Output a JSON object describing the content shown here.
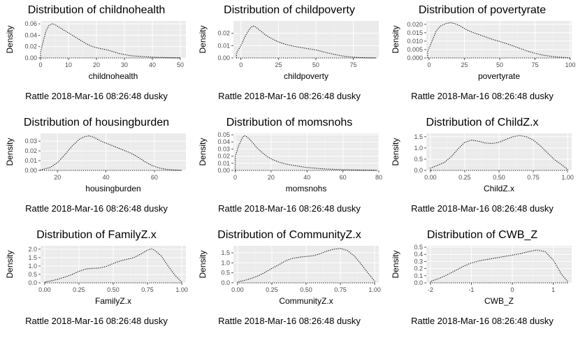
{
  "caption": "Rattle 2018-Mar-16 08:26:48 dusky",
  "chart_data": [
    {
      "type": "area",
      "title": "Distribution of childnohealth",
      "xlabel": "childnohealth",
      "ylabel": "Density",
      "xlim": [
        0,
        52
      ],
      "ylim": [
        0,
        0.065
      ],
      "xticks": [
        0,
        10,
        20,
        30,
        40,
        50
      ],
      "yticks": [
        0,
        0.02,
        0.04,
        0.06
      ],
      "ytick_labels": [
        "0.00",
        "0.02",
        "0.04",
        "0.06"
      ],
      "x": [
        0,
        1,
        2,
        3,
        4,
        5,
        6,
        8,
        10,
        12,
        14,
        16,
        18,
        20,
        22,
        24,
        26,
        28,
        30,
        32,
        35,
        38,
        41,
        44,
        47,
        50
      ],
      "y": [
        0.01,
        0.03,
        0.048,
        0.057,
        0.06,
        0.059,
        0.056,
        0.05,
        0.044,
        0.038,
        0.032,
        0.026,
        0.021,
        0.018,
        0.016,
        0.014,
        0.011,
        0.008,
        0.006,
        0.004,
        0.003,
        0.002,
        0.001,
        0.0008,
        0.0004,
        0.0002
      ]
    },
    {
      "type": "area",
      "title": "Distribution of childpoverty",
      "xlabel": "childpoverty",
      "ylabel": "Density",
      "xlim": [
        -5,
        92
      ],
      "ylim": [
        0,
        0.03
      ],
      "xticks": [
        0,
        25,
        50,
        75
      ],
      "yticks": [
        0,
        0.01,
        0.02
      ],
      "ytick_labels": [
        "0.00",
        "0.01",
        "0.02"
      ],
      "x": [
        -3,
        0,
        3,
        6,
        8,
        10,
        13,
        16,
        20,
        25,
        30,
        35,
        40,
        45,
        50,
        55,
        60,
        65,
        70,
        75,
        80,
        85,
        90
      ],
      "y": [
        0.004,
        0.01,
        0.018,
        0.024,
        0.026,
        0.025,
        0.022,
        0.019,
        0.016,
        0.013,
        0.011,
        0.0095,
        0.0085,
        0.0075,
        0.0065,
        0.005,
        0.0035,
        0.0022,
        0.0012,
        0.0006,
        0.0003,
        0.0001,
        3e-05
      ]
    },
    {
      "type": "area",
      "title": "Distribution of povertyrate",
      "xlabel": "povertyrate",
      "ylabel": "Density",
      "xlim": [
        -2,
        101
      ],
      "ylim": [
        0,
        0.022
      ],
      "xticks": [
        0,
        25,
        50,
        75,
        100
      ],
      "yticks": [
        0,
        0.005,
        0.01,
        0.015,
        0.02
      ],
      "ytick_labels": [
        "0.000",
        "0.005",
        "0.010",
        "0.015",
        "0.020"
      ],
      "x": [
        -1,
        2,
        5,
        8,
        12,
        15,
        18,
        22,
        26,
        30,
        35,
        40,
        45,
        50,
        55,
        60,
        65,
        70,
        75,
        80,
        85,
        90,
        95,
        100
      ],
      "y": [
        0.004,
        0.01,
        0.016,
        0.019,
        0.0205,
        0.021,
        0.0205,
        0.019,
        0.017,
        0.0155,
        0.014,
        0.0125,
        0.011,
        0.0098,
        0.0085,
        0.007,
        0.0055,
        0.004,
        0.0028,
        0.0018,
        0.0011,
        0.0006,
        0.0003,
        0.0001
      ]
    },
    {
      "type": "area",
      "title": "Distribution of housingburden",
      "xlabel": "housingburden",
      "ylabel": "Density",
      "xlim": [
        13,
        73
      ],
      "ylim": [
        0,
        0.038
      ],
      "xticks": [
        20,
        40,
        60
      ],
      "yticks": [
        0,
        0.01,
        0.02,
        0.03
      ],
      "ytick_labels": [
        "0.00",
        "0.01",
        "0.02",
        "0.03"
      ],
      "x": [
        13,
        17,
        20,
        23,
        26,
        29,
        31,
        33,
        35,
        38,
        41,
        44,
        47,
        50,
        53,
        56,
        59,
        62,
        65,
        68,
        71
      ],
      "y": [
        0.0005,
        0.003,
        0.008,
        0.016,
        0.025,
        0.032,
        0.0345,
        0.0355,
        0.034,
        0.03,
        0.027,
        0.024,
        0.021,
        0.018,
        0.014,
        0.009,
        0.005,
        0.0025,
        0.001,
        0.0004,
        0.0001
      ]
    },
    {
      "type": "area",
      "title": "Distribution of momsnohs",
      "xlabel": "momsnohs",
      "ylabel": "Density",
      "xlim": [
        -1,
        80
      ],
      "ylim": [
        0,
        0.052
      ],
      "xticks": [
        0,
        20,
        40,
        60,
        80
      ],
      "yticks": [
        0,
        0.01,
        0.02,
        0.03,
        0.04,
        0.05
      ],
      "ytick_labels": [
        "0.00",
        "0.01",
        "0.02",
        "0.03",
        "0.04",
        "0.05"
      ],
      "x": [
        0,
        2,
        4,
        5,
        6,
        8,
        10,
        12,
        15,
        18,
        21,
        25,
        30,
        35,
        40,
        45,
        50,
        55,
        60,
        65,
        70,
        75,
        79
      ],
      "y": [
        0.02,
        0.035,
        0.046,
        0.049,
        0.048,
        0.044,
        0.038,
        0.032,
        0.025,
        0.019,
        0.015,
        0.011,
        0.008,
        0.006,
        0.004,
        0.003,
        0.002,
        0.0015,
        0.001,
        0.0007,
        0.0004,
        0.0002,
        0.0001
      ]
    },
    {
      "type": "area",
      "title": "Distribution of ChildZ.x",
      "xlabel": "ChildZ.x",
      "ylabel": "Density",
      "xlim": [
        -0.03,
        1.03
      ],
      "ylim": [
        0,
        1.65
      ],
      "xticks": [
        0,
        0.25,
        0.5,
        0.75,
        1
      ],
      "xtick_labels": [
        "0.00",
        "0.25",
        "0.50",
        "0.75",
        "1.00"
      ],
      "yticks": [
        0,
        0.5,
        1,
        1.5
      ],
      "ytick_labels": [
        "0.0",
        "0.5",
        "1.0",
        "1.5"
      ],
      "x": [
        0,
        0.05,
        0.1,
        0.15,
        0.2,
        0.25,
        0.3,
        0.35,
        0.4,
        0.45,
        0.5,
        0.55,
        0.6,
        0.65,
        0.7,
        0.75,
        0.8,
        0.85,
        0.9,
        0.95,
        1
      ],
      "y": [
        0.1,
        0.22,
        0.35,
        0.6,
        0.95,
        1.25,
        1.35,
        1.3,
        1.22,
        1.2,
        1.25,
        1.38,
        1.5,
        1.55,
        1.5,
        1.35,
        1.1,
        0.8,
        0.5,
        0.28,
        0.05
      ]
    },
    {
      "type": "area",
      "title": "Distribution of FamilyZ.x",
      "xlabel": "FamilyZ.x",
      "ylabel": "Density",
      "xlim": [
        -0.03,
        1.03
      ],
      "ylim": [
        0,
        2.2
      ],
      "xticks": [
        0,
        0.25,
        0.5,
        0.75,
        1
      ],
      "xtick_labels": [
        "0.00",
        "0.25",
        "0.50",
        "0.75",
        "1.00"
      ],
      "yticks": [
        0,
        0.5,
        1,
        1.5,
        2
      ],
      "ytick_labels": [
        "0.0",
        "0.5",
        "1.0",
        "1.5",
        "2.0"
      ],
      "x": [
        0,
        0.05,
        0.1,
        0.15,
        0.2,
        0.25,
        0.3,
        0.35,
        0.4,
        0.45,
        0.5,
        0.55,
        0.6,
        0.65,
        0.7,
        0.75,
        0.78,
        0.8,
        0.85,
        0.9,
        0.95,
        1
      ],
      "y": [
        0.05,
        0.12,
        0.22,
        0.35,
        0.5,
        0.68,
        0.82,
        0.86,
        0.88,
        0.98,
        1.15,
        1.3,
        1.4,
        1.5,
        1.7,
        1.95,
        2.02,
        1.95,
        1.6,
        1.0,
        0.45,
        0.05
      ]
    },
    {
      "type": "area",
      "title": "Distribution of CommunityZ.x",
      "xlabel": "CommunityZ.x",
      "ylabel": "Density",
      "xlim": [
        -0.03,
        1.03
      ],
      "ylim": [
        0,
        1.85
      ],
      "xticks": [
        0,
        0.25,
        0.5,
        0.75,
        1
      ],
      "xtick_labels": [
        "0.00",
        "0.25",
        "0.50",
        "0.75",
        "1.00"
      ],
      "yticks": [
        0,
        0.5,
        1,
        1.5
      ],
      "ytick_labels": [
        "0.0",
        "0.5",
        "1.0",
        "1.5"
      ],
      "x": [
        0,
        0.05,
        0.1,
        0.15,
        0.2,
        0.25,
        0.3,
        0.35,
        0.4,
        0.45,
        0.5,
        0.55,
        0.6,
        0.65,
        0.7,
        0.75,
        0.8,
        0.85,
        0.9,
        0.95,
        1
      ],
      "y": [
        0.05,
        0.12,
        0.22,
        0.35,
        0.52,
        0.72,
        0.9,
        1.1,
        1.22,
        1.28,
        1.32,
        1.35,
        1.45,
        1.58,
        1.68,
        1.72,
        1.62,
        1.35,
        0.95,
        0.5,
        0.08
      ]
    },
    {
      "type": "area",
      "title": "Distribution of CWB_Z",
      "xlabel": "CWB_Z",
      "ylabel": "Density",
      "xlim": [
        -2.1,
        1.45
      ],
      "ylim": [
        0,
        0.52
      ],
      "xticks": [
        -2,
        -1,
        0,
        1
      ],
      "yticks": [
        0,
        0.1,
        0.2,
        0.3,
        0.4,
        0.5
      ],
      "ytick_labels": [
        "0.0",
        "0.1",
        "0.2",
        "0.3",
        "0.4",
        "0.5"
      ],
      "x": [
        -2,
        -1.8,
        -1.6,
        -1.4,
        -1.2,
        -1,
        -0.8,
        -0.6,
        -0.4,
        -0.2,
        0,
        0.2,
        0.4,
        0.6,
        0.8,
        1,
        1.2,
        1.35
      ],
      "y": [
        0.02,
        0.06,
        0.11,
        0.17,
        0.23,
        0.28,
        0.31,
        0.33,
        0.35,
        0.37,
        0.39,
        0.41,
        0.44,
        0.46,
        0.44,
        0.32,
        0.12,
        0.02
      ]
    }
  ]
}
